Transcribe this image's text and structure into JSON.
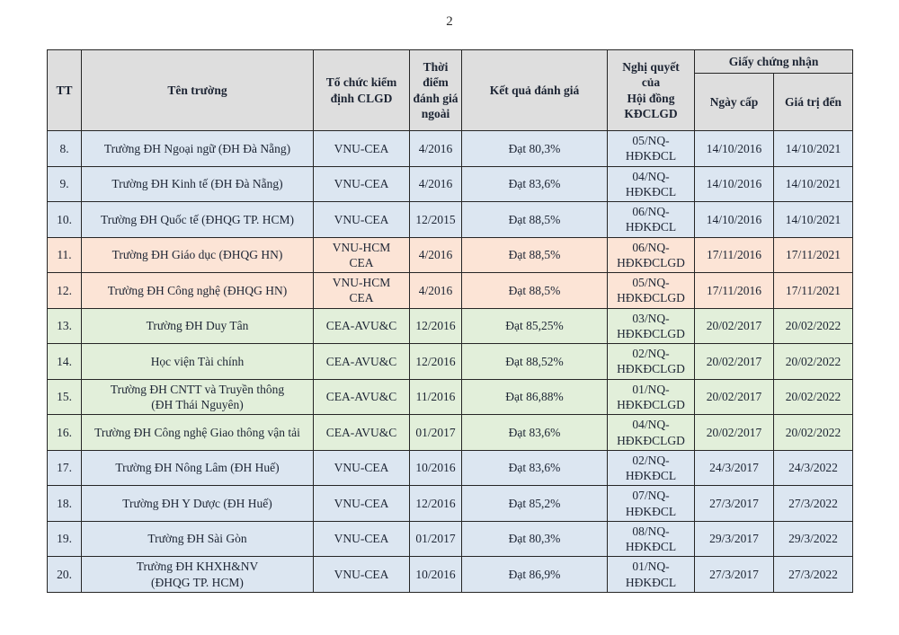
{
  "page": {
    "number": "2"
  },
  "colors": {
    "header_bg": "#dedede",
    "band_blue": "#dce6f1",
    "band_salmon": "#fce4d6",
    "band_green": "#e2efda",
    "border": "#262626",
    "text": "#1c2433"
  },
  "table": {
    "headers": {
      "tt": "TT",
      "name": "Tên trường",
      "org": "Tổ chức kiểm định CLGD",
      "time": "Thời điểm đánh giá ngoài",
      "result": "Kết quả đánh giá",
      "resolution": "Nghị quyết\ncủa\nHội đồng\nKĐCLGD",
      "certificate": "Giấy chứng nhận",
      "issue_date": "Ngày cấp",
      "valid_until": "Giá trị đến"
    },
    "rows": [
      {
        "tt": "8.",
        "name": "Trường ĐH Ngoại ngữ (ĐH Đà Nẵng)",
        "org": "VNU-CEA",
        "time": "4/2016",
        "result": "Đạt 80,3%",
        "resolution": "05/NQ-\nHĐKĐCL",
        "issue_date": "14/10/2016",
        "valid_until": "14/10/2021",
        "band": "blue"
      },
      {
        "tt": "9.",
        "name": "Trường ĐH Kinh tế (ĐH Đà Nẵng)",
        "org": "VNU-CEA",
        "time": "4/2016",
        "result": "Đạt 83,6%",
        "resolution": "04/NQ-\nHĐKĐCL",
        "issue_date": "14/10/2016",
        "valid_until": "14/10/2021",
        "band": "blue"
      },
      {
        "tt": "10.",
        "name": "Trường ĐH Quốc tế (ĐHQG TP. HCM)",
        "org": "VNU-CEA",
        "time": "12/2015",
        "result": "Đạt 88,5%",
        "resolution": "06/NQ-\nHĐKĐCL",
        "issue_date": "14/10/2016",
        "valid_until": "14/10/2021",
        "band": "blue"
      },
      {
        "tt": "11.",
        "name": "Trường ĐH Giáo dục (ĐHQG HN)",
        "org": "VNU-HCM\nCEA",
        "time": "4/2016",
        "result": "Đạt 88,5%",
        "resolution": "06/NQ-\nHĐKĐCLGD",
        "issue_date": "17/11/2016",
        "valid_until": "17/11/2021",
        "band": "salmon"
      },
      {
        "tt": "12.",
        "name": "Trường ĐH Công nghệ (ĐHQG HN)",
        "org": "VNU-HCM\nCEA",
        "time": "4/2016",
        "result": "Đạt 88,5%",
        "resolution": "05/NQ-\nHĐKĐCLGD",
        "issue_date": "17/11/2016",
        "valid_until": "17/11/2021",
        "band": "salmon"
      },
      {
        "tt": "13.",
        "name": "Trường ĐH Duy Tân",
        "org": "CEA-AVU&C",
        "time": "12/2016",
        "result": "Đạt 85,25%",
        "resolution": "03/NQ-\nHĐKĐCLGD",
        "issue_date": "20/02/2017",
        "valid_until": "20/02/2022",
        "band": "green"
      },
      {
        "tt": "14.",
        "name": "Học viện Tài chính",
        "org": "CEA-AVU&C",
        "time": "12/2016",
        "result": "Đạt 88,52%",
        "resolution": "02/NQ-\nHĐKĐCLGD",
        "issue_date": "20/02/2017",
        "valid_until": "20/02/2022",
        "band": "green"
      },
      {
        "tt": "15.",
        "name": "Trường ĐH CNTT và Truyền thông\n(ĐH Thái Nguyên)",
        "org": "CEA-AVU&C",
        "time": "11/2016",
        "result": "Đạt 86,88%",
        "resolution": "01/NQ-\nHĐKĐCLGD",
        "issue_date": "20/02/2017",
        "valid_until": "20/02/2022",
        "band": "green"
      },
      {
        "tt": "16.",
        "name": "Trường ĐH Công nghệ Giao thông vận tải",
        "org": "CEA-AVU&C",
        "time": "01/2017",
        "result": "Đạt 83,6%",
        "resolution": "04/NQ-\nHĐKĐCLGD",
        "issue_date": "20/02/2017",
        "valid_until": "20/02/2022",
        "band": "green"
      },
      {
        "tt": "17.",
        "name": "Trường ĐH Nông Lâm (ĐH Huế)",
        "org": "VNU-CEA",
        "time": "10/2016",
        "result": "Đạt 83,6%",
        "resolution": "02/NQ-\nHĐKĐCL",
        "issue_date": "24/3/2017",
        "valid_until": "24/3/2022",
        "band": "blue"
      },
      {
        "tt": "18.",
        "name": "Trường ĐH Y Dược (ĐH Huế)",
        "org": "VNU-CEA",
        "time": "12/2016",
        "result": "Đạt 85,2%",
        "resolution": "07/NQ-\nHĐKĐCL",
        "issue_date": "27/3/2017",
        "valid_until": "27/3/2022",
        "band": "blue"
      },
      {
        "tt": "19.",
        "name": "Trường ĐH Sài Gòn",
        "org": "VNU-CEA",
        "time": "01/2017",
        "result": "Đạt 80,3%",
        "resolution": "08/NQ-\nHĐKĐCL",
        "issue_date": "29/3/2017",
        "valid_until": "29/3/2022",
        "band": "blue"
      },
      {
        "tt": "20.",
        "name": "Trường ĐH KHXH&NV\n(ĐHQG TP. HCM)",
        "org": "VNU-CEA",
        "time": "10/2016",
        "result": "Đạt 86,9%",
        "resolution": "01/NQ-\nHĐKĐCL",
        "issue_date": "27/3/2017",
        "valid_until": "27/3/2022",
        "band": "blue"
      }
    ]
  }
}
